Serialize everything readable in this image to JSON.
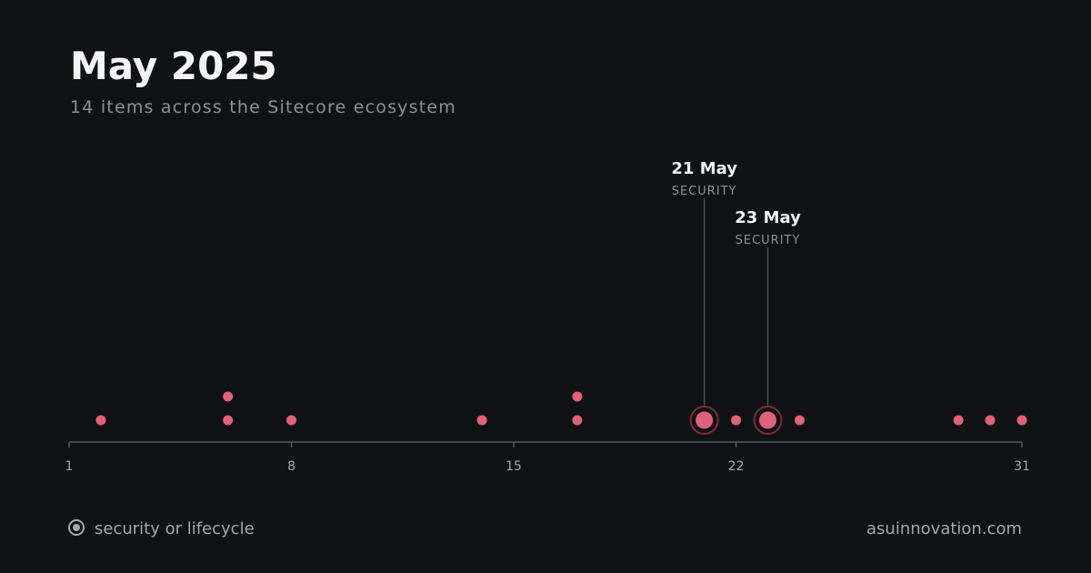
{
  "chart_data": {
    "type": "scatter",
    "title": "May 2025",
    "subtitle": "14 items across the Sitecore ecosystem",
    "xlim": [
      1,
      31
    ],
    "xticks": [
      1,
      8,
      15,
      22,
      31
    ],
    "series": [
      {
        "color": "#e0627a",
        "x": [
          2,
          6,
          6,
          8,
          14,
          17,
          17,
          22,
          24,
          29,
          30,
          31
        ]
      },
      {
        "name": "security or lifecycle",
        "color": "#e0627a",
        "x": [
          21,
          23
        ]
      }
    ],
    "annotations": [
      {
        "x": 21,
        "label": "21 May",
        "tag": "SECURITY"
      },
      {
        "x": 23,
        "label": "23 May",
        "tag": "SECURITY"
      }
    ],
    "footer": "asuinnovation.com"
  }
}
